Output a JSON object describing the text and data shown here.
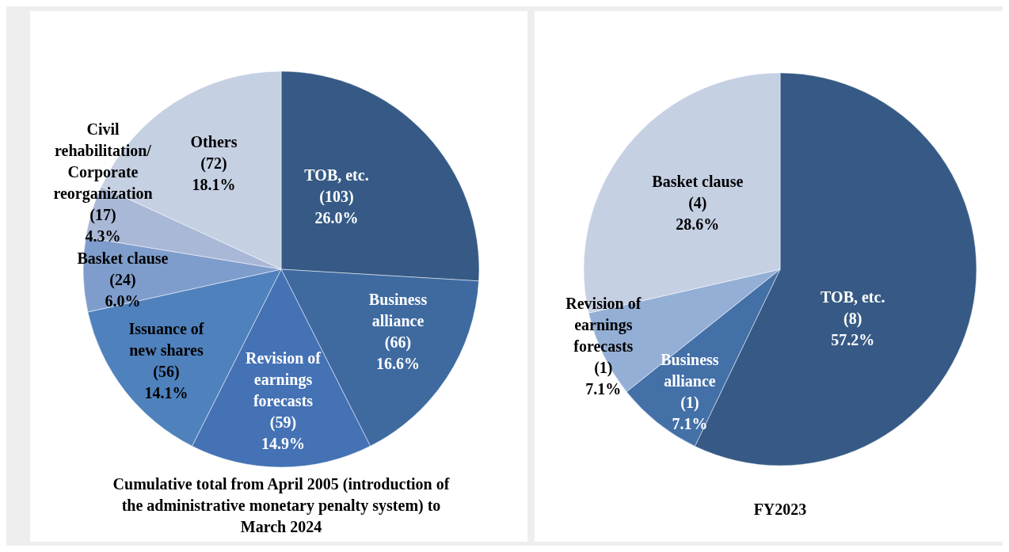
{
  "chart_data": [
    {
      "type": "pie",
      "title": "Cumulative total from April 2005 (introduction of the administrative monetary penalty system) to March 2024",
      "categories": [
        "TOB, etc.",
        "Business alliance",
        "Revision of earnings forecasts",
        "Issuance of new shares",
        "Basket clause",
        "Civil rehabilitation/ Corporate reorganization",
        "Others"
      ],
      "values": [
        103,
        66,
        59,
        56,
        24,
        17,
        72
      ],
      "colors": [
        "#365a85",
        "#3e6aa0",
        "#4472b4",
        "#4f81bd",
        "#7f9dcc",
        "#a9b8d6",
        "#c5d0e3"
      ],
      "value_labels": [
        "(103)\n26.0%",
        "(66)\n16.6%",
        "(59)\n14.9%",
        "(56)\n14.1%",
        "(24)\n6.0%",
        "(17)\n4.3%",
        "(72)\n18.1%"
      ]
    },
    {
      "type": "pie",
      "title": "FY2023",
      "categories": [
        "TOB, etc.",
        "Business alliance",
        "Revision of earnings forecasts",
        "Basket clause"
      ],
      "values": [
        8,
        1,
        1,
        4
      ],
      "colors": [
        "#365a85",
        "#4470a8",
        "#94afd6",
        "#c5d0e3"
      ],
      "value_labels": [
        "(8)\n57.2%",
        "(1)\n7.1%",
        "(1)\n7.1%",
        "(4)\n28.6%"
      ]
    }
  ]
}
